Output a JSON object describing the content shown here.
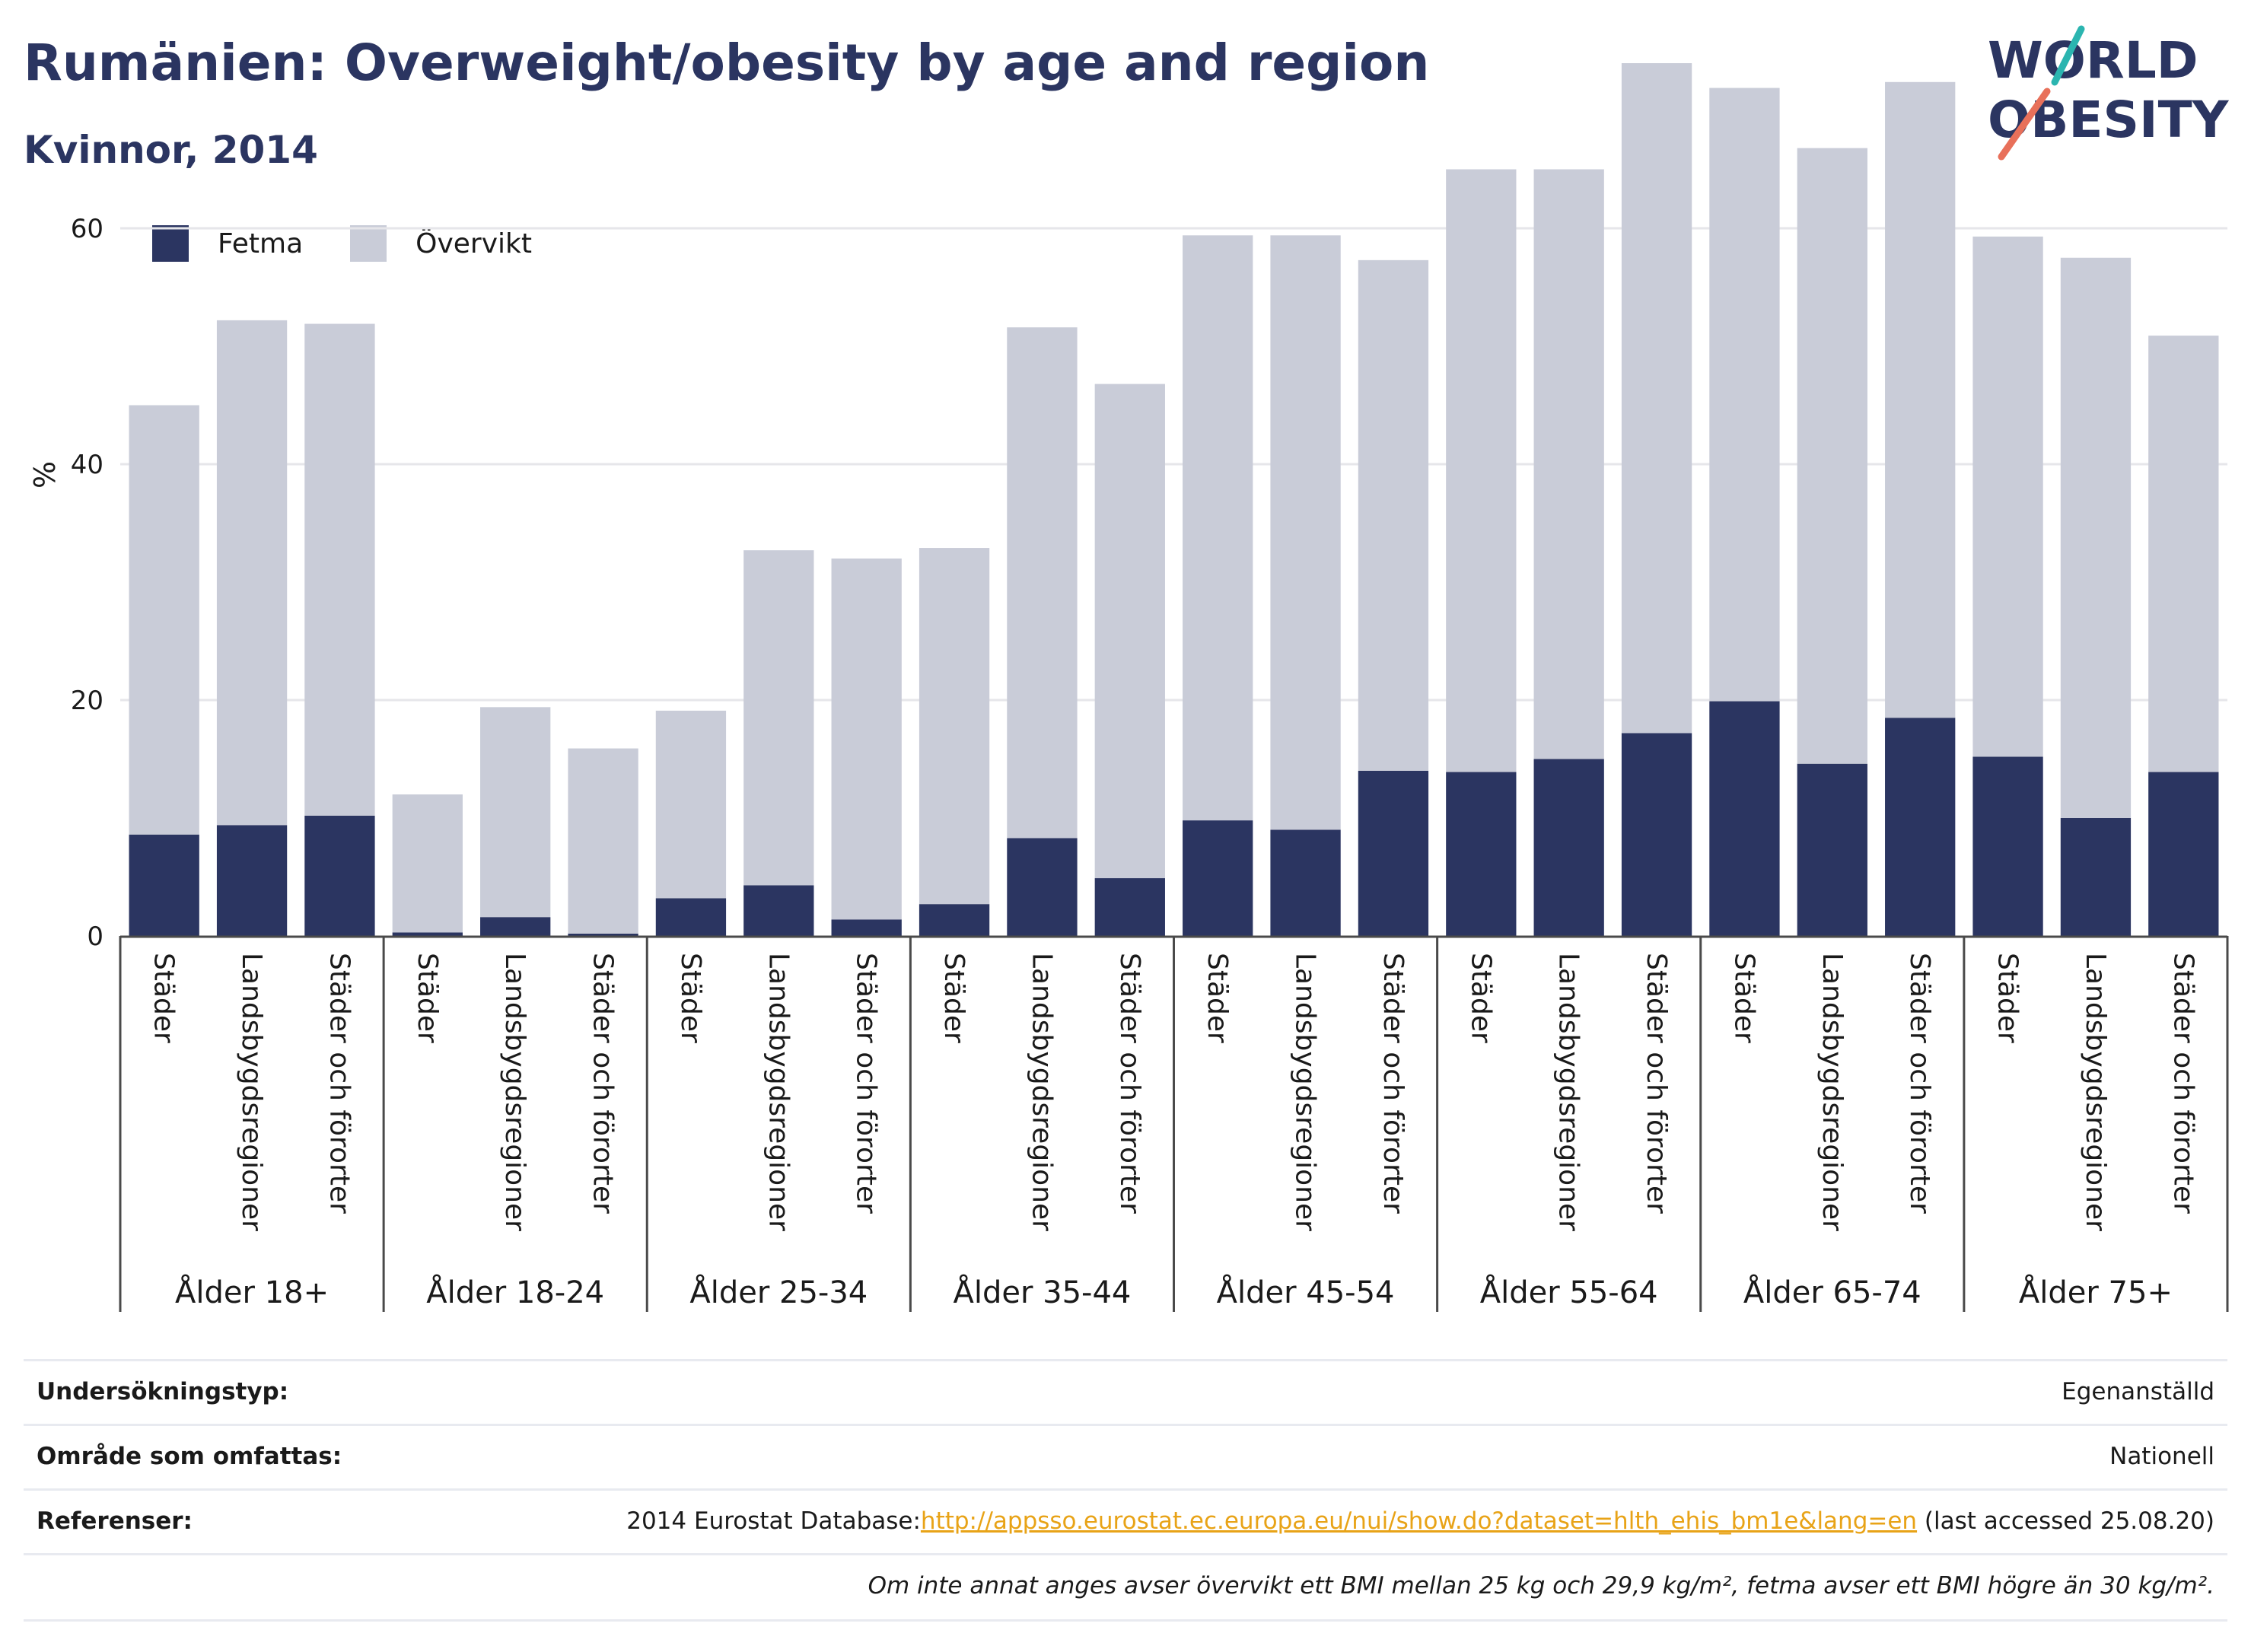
{
  "title": "Rumänien: Overweight/obesity by age and region",
  "subtitle": "Kvinnor, 2014",
  "logo": {
    "line1": "WORLD",
    "line2": "OBESITY",
    "accent_teal": "#2bb5b0",
    "accent_coral": "#e8705a"
  },
  "colors": {
    "fetma": "#2b3561",
    "overvikt": "#c9ccd8",
    "title": "#2b3561",
    "link": "#e8a317"
  },
  "chart_data": {
    "type": "bar",
    "stacked": true,
    "ylabel": "%",
    "yticks": [
      0,
      20,
      40,
      60
    ],
    "ylim": [
      0,
      80
    ],
    "grid": true,
    "legend_position": "top-left",
    "series": [
      {
        "name": "Fetma",
        "color": "#2b3561",
        "values": [
          8.6,
          9.4,
          10.2,
          0.3,
          1.6,
          0.2,
          3.2,
          4.3,
          1.4,
          2.7,
          8.3,
          4.9,
          9.8,
          9.0,
          14.0,
          13.9,
          15.0,
          17.2,
          19.9,
          14.6,
          18.5,
          15.2,
          10.0,
          13.9
        ]
      },
      {
        "name": "Övervikt",
        "color": "#c9ccd8",
        "values": [
          36.4,
          42.8,
          41.7,
          11.7,
          17.8,
          15.7,
          15.9,
          28.4,
          30.6,
          30.2,
          43.3,
          41.9,
          49.6,
          50.4,
          43.3,
          51.1,
          50.0,
          56.8,
          52.0,
          52.2,
          53.9,
          44.1,
          47.5,
          37.0
        ]
      }
    ],
    "categories": [
      "Städer",
      "Landsbygdsregioner",
      "Städer och förorter",
      "Städer",
      "Landsbygdsregioner",
      "Städer och förorter",
      "Städer",
      "Landsbygdsregioner",
      "Städer och förorter",
      "Städer",
      "Landsbygdsregioner",
      "Städer och förorter",
      "Städer",
      "Landsbygdsregioner",
      "Städer och förorter",
      "Städer",
      "Landsbygdsregioner",
      "Städer och förorter",
      "Städer",
      "Landsbygdsregioner",
      "Städer och förorter",
      "Städer",
      "Landsbygdsregioner",
      "Städer och förorter"
    ],
    "groups": [
      "Ålder 18+",
      "Ålder 18-24",
      "Ålder 25-34",
      "Ålder 35-44",
      "Ålder 45-54",
      "Ålder 55-64",
      "Ålder 65-74",
      "Ålder 75+"
    ]
  },
  "legend": [
    {
      "label": "Fetma",
      "color": "#2b3561"
    },
    {
      "label": "Övervikt",
      "color": "#c9ccd8"
    }
  ],
  "info": {
    "survey_label": "Undersökningstyp:",
    "survey_value": "Egenanställd",
    "area_label": "Område som omfattas:",
    "area_value": "Nationell",
    "ref_label": "Referenser:",
    "ref_prefix": "2014 Eurostat Database:",
    "ref_link": "http://appsso.eurostat.ec.europa.eu/nui/show.do?dataset=hlth_ehis_bm1e&lang=en",
    "ref_suffix": " (last accessed 25.08.20)",
    "note": "Om inte annat anges avser övervikt ett BMI mellan 25 kg och 29,9 kg/m², fetma avser ett BMI högre än 30 kg/m²."
  }
}
